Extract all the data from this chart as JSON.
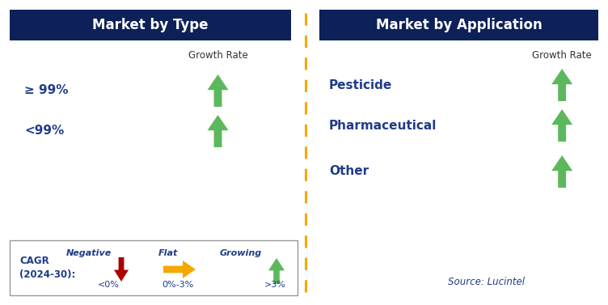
{
  "title_left": "Market by Type",
  "title_right": "Market by Application",
  "title_bg_color": "#0d2057",
  "title_text_color": "#ffffff",
  "left_items": [
    "≥ 99%",
    "<99%"
  ],
  "right_items": [
    "Pesticide",
    "Pharmaceutical",
    "Other"
  ],
  "item_text_color": "#1f3c88",
  "growth_rate_label": "Growth Rate",
  "growth_rate_color": "#333333",
  "arrow_up_color": "#5cb85c",
  "arrow_down_color": "#aa0000",
  "arrow_flat_color": "#f5a800",
  "divider_color": "#f5a800",
  "legend_cagr_label1": "CAGR",
  "legend_cagr_label2": "(2024-30):",
  "legend_negative_label": "Negative",
  "legend_negative_range": "<0%",
  "legend_flat_label": "Flat",
  "legend_flat_range": "0%-3%",
  "legend_growing_label": "Growing",
  "legend_growing_range": ">3%",
  "source_text": "Source: Lucintel",
  "source_color": "#1f3c88",
  "bg_color": "#ffffff",
  "fig_w": 7.52,
  "fig_h": 3.77,
  "dpi": 100
}
